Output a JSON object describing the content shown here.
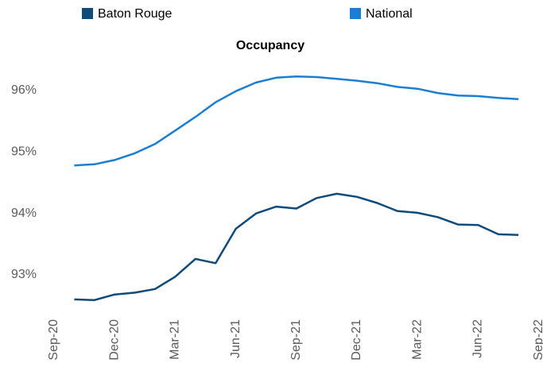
{
  "chart_data": {
    "type": "line",
    "title": "Occupancy",
    "categories": [
      "Sep-20",
      null,
      null,
      "Dec-20",
      null,
      null,
      "Mar-21",
      null,
      null,
      "Jun-21",
      null,
      null,
      "Sep-21",
      null,
      null,
      "Dec-21",
      null,
      null,
      "Mar-22",
      null,
      null,
      "Jun-22",
      null,
      null,
      "Sep-22"
    ],
    "series": [
      {
        "name": "Baton Rouge",
        "color": "#0f4a7c",
        "values": [
          null,
          92.6,
          92.59,
          92.68,
          92.71,
          92.77,
          92.97,
          93.26,
          93.19,
          93.75,
          94.0,
          94.11,
          94.08,
          94.25,
          94.32,
          94.27,
          94.17,
          94.04,
          94.01,
          93.94,
          93.82,
          93.81,
          93.66,
          93.65,
          null
        ]
      },
      {
        "name": "National",
        "color": "#1a7fd4",
        "values": [
          null,
          94.78,
          94.8,
          94.87,
          94.98,
          95.13,
          95.35,
          95.57,
          95.81,
          95.99,
          96.13,
          96.21,
          96.23,
          96.22,
          96.19,
          96.16,
          96.12,
          96.06,
          96.03,
          95.96,
          95.92,
          95.91,
          95.88,
          95.86,
          null
        ]
      }
    ],
    "ylim": [
      92.37,
      96.9
    ],
    "yticks": [
      {
        "value": 93,
        "label": "93%"
      },
      {
        "value": 94,
        "label": "94%"
      },
      {
        "value": 95,
        "label": "95%"
      },
      {
        "value": 96,
        "label": "96%"
      }
    ],
    "legend": "top"
  }
}
